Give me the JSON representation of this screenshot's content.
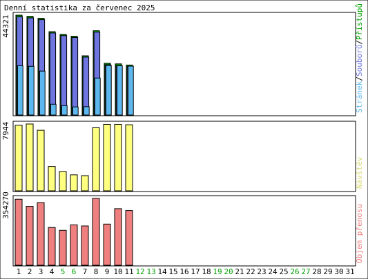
{
  "page": {
    "title": "Denní statistika za červenec 2025"
  },
  "colors": {
    "background": "#ffffff",
    "frame": "#000000",
    "hits": "#5db8f0",
    "files": "#6e74e0",
    "sites": "#00a000",
    "visits": "#ffff80",
    "kbytes": "#f08080",
    "weekend_label": "#00a000",
    "weekday_label": "#000000"
  },
  "chart_data": [
    {
      "type": "bar",
      "panel": "hits-files-sites",
      "ylabel": "44321",
      "legend": {
        "parts": [
          {
            "text": "Stránek",
            "color": "#5db8f0"
          },
          {
            "text": "/",
            "color": "#000000"
          },
          {
            "text": "Souborů",
            "color": "#6e74e0"
          },
          {
            "text": "/",
            "color": "#000000"
          },
          {
            "text": "Přístupů",
            "color": "#00a000"
          }
        ]
      },
      "ylim": [
        0,
        44321
      ],
      "categories": [
        "1",
        "2",
        "3",
        "4",
        "5",
        "6",
        "7",
        "8",
        "9",
        "10",
        "11",
        "12",
        "13",
        "14",
        "15",
        "16",
        "17",
        "18",
        "19",
        "20",
        "21",
        "22",
        "23",
        "24",
        "25",
        "26",
        "27",
        "28",
        "29",
        "30",
        "31"
      ],
      "series": [
        {
          "name": "Přístupů",
          "values": [
            44321,
            43800,
            42900,
            37000,
            35800,
            35000,
            26300,
            37400,
            23000,
            22700,
            22200,
            0,
            0,
            0,
            0,
            0,
            0,
            0,
            0,
            0,
            0,
            0,
            0,
            0,
            0,
            0,
            0,
            0,
            0,
            0,
            0
          ]
        },
        {
          "name": "Souborů",
          "values": [
            43600,
            43100,
            42300,
            36400,
            35200,
            34400,
            25700,
            36800,
            22300,
            22000,
            21600,
            0,
            0,
            0,
            0,
            0,
            0,
            0,
            0,
            0,
            0,
            0,
            0,
            0,
            0,
            0,
            0,
            0,
            0,
            0,
            0
          ]
        },
        {
          "name": "Stránek",
          "values": [
            21900,
            21600,
            19500,
            4800,
            4200,
            3600,
            3700,
            16400,
            22000,
            21900,
            21700,
            0,
            0,
            0,
            0,
            0,
            0,
            0,
            0,
            0,
            0,
            0,
            0,
            0,
            0,
            0,
            0,
            0,
            0,
            0,
            0
          ]
        }
      ]
    },
    {
      "type": "bar",
      "panel": "visits",
      "ylabel": "7944",
      "legend": {
        "parts": [
          {
            "text": "Návštěv",
            "color": "#d8d870"
          }
        ]
      },
      "ylim": [
        0,
        7944
      ],
      "categories": [
        "1",
        "2",
        "3",
        "4",
        "5",
        "6",
        "7",
        "8",
        "9",
        "10",
        "11",
        "12",
        "13",
        "14",
        "15",
        "16",
        "17",
        "18",
        "19",
        "20",
        "21",
        "22",
        "23",
        "24",
        "25",
        "26",
        "27",
        "28",
        "29",
        "30",
        "31"
      ],
      "series": [
        {
          "name": "Návštěv",
          "values": [
            7800,
            7944,
            7200,
            2900,
            2300,
            1900,
            1800,
            7500,
            7900,
            7900,
            7850,
            0,
            0,
            0,
            0,
            0,
            0,
            0,
            0,
            0,
            0,
            0,
            0,
            0,
            0,
            0,
            0,
            0,
            0,
            0,
            0
          ]
        }
      ]
    },
    {
      "type": "bar",
      "panel": "kbytes",
      "ylabel": "354270",
      "legend": {
        "parts": [
          {
            "text": "Objem přenosu",
            "color": "#f08080"
          }
        ]
      },
      "ylim": [
        0,
        354270
      ],
      "categories": [
        "1",
        "2",
        "3",
        "4",
        "5",
        "6",
        "7",
        "8",
        "9",
        "10",
        "11",
        "12",
        "13",
        "14",
        "15",
        "16",
        "17",
        "18",
        "19",
        "20",
        "21",
        "22",
        "23",
        "24",
        "25",
        "26",
        "27",
        "28",
        "29",
        "30",
        "31"
      ],
      "series": [
        {
          "name": "Objem přenosu",
          "values": [
            350000,
            312000,
            332000,
            200000,
            185000,
            214000,
            208000,
            354270,
            218000,
            300000,
            290000,
            0,
            0,
            0,
            0,
            0,
            0,
            0,
            0,
            0,
            0,
            0,
            0,
            0,
            0,
            0,
            0,
            0,
            0,
            0,
            0
          ]
        }
      ]
    }
  ],
  "x_axis": {
    "weekend_days": [
      "5",
      "6",
      "12",
      "13",
      "19",
      "20",
      "26",
      "27"
    ]
  }
}
